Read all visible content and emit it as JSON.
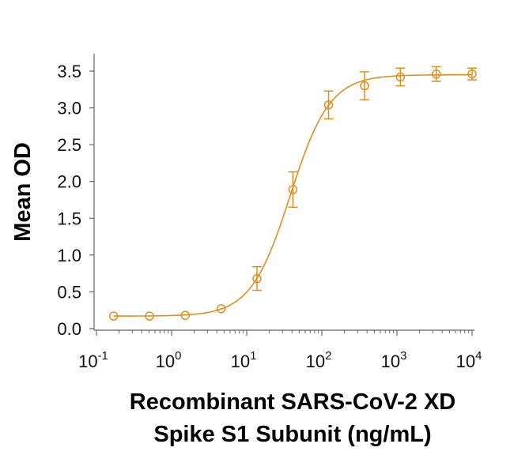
{
  "chart_data": {
    "type": "scatter",
    "title": "",
    "xlabel_lines": [
      "Recombinant SARS-CoV-2 XD",
      "Spike S1 Subunit (ng/mL)"
    ],
    "ylabel": "Mean OD",
    "x_scale": "log",
    "xlim": [
      0.1,
      10000
    ],
    "ylim": [
      0,
      3.5
    ],
    "x_ticks": [
      {
        "base": "10",
        "exp": "-1"
      },
      {
        "base": "10",
        "exp": "0"
      },
      {
        "base": "10",
        "exp": "1"
      },
      {
        "base": "10",
        "exp": "2"
      },
      {
        "base": "10",
        "exp": "3"
      },
      {
        "base": "10",
        "exp": "4"
      }
    ],
    "y_ticks": [
      "0.0",
      "0.5",
      "1.0",
      "1.5",
      "2.0",
      "2.5",
      "3.0",
      "3.5"
    ],
    "grid": false,
    "color": "#E08E1B",
    "series": [
      {
        "x": [
          0.169,
          0.508,
          1.52,
          4.57,
          13.7,
          41.2,
          123,
          370,
          1111,
          3333,
          10000
        ],
        "y": [
          0.17,
          0.17,
          0.18,
          0.27,
          0.68,
          1.89,
          3.04,
          3.3,
          3.42,
          3.46,
          3.46
        ],
        "error": [
          0.01,
          0.01,
          0.02,
          0.03,
          0.16,
          0.24,
          0.19,
          0.19,
          0.12,
          0.1,
          0.08
        ],
        "fit": "4PL curve"
      }
    ]
  }
}
